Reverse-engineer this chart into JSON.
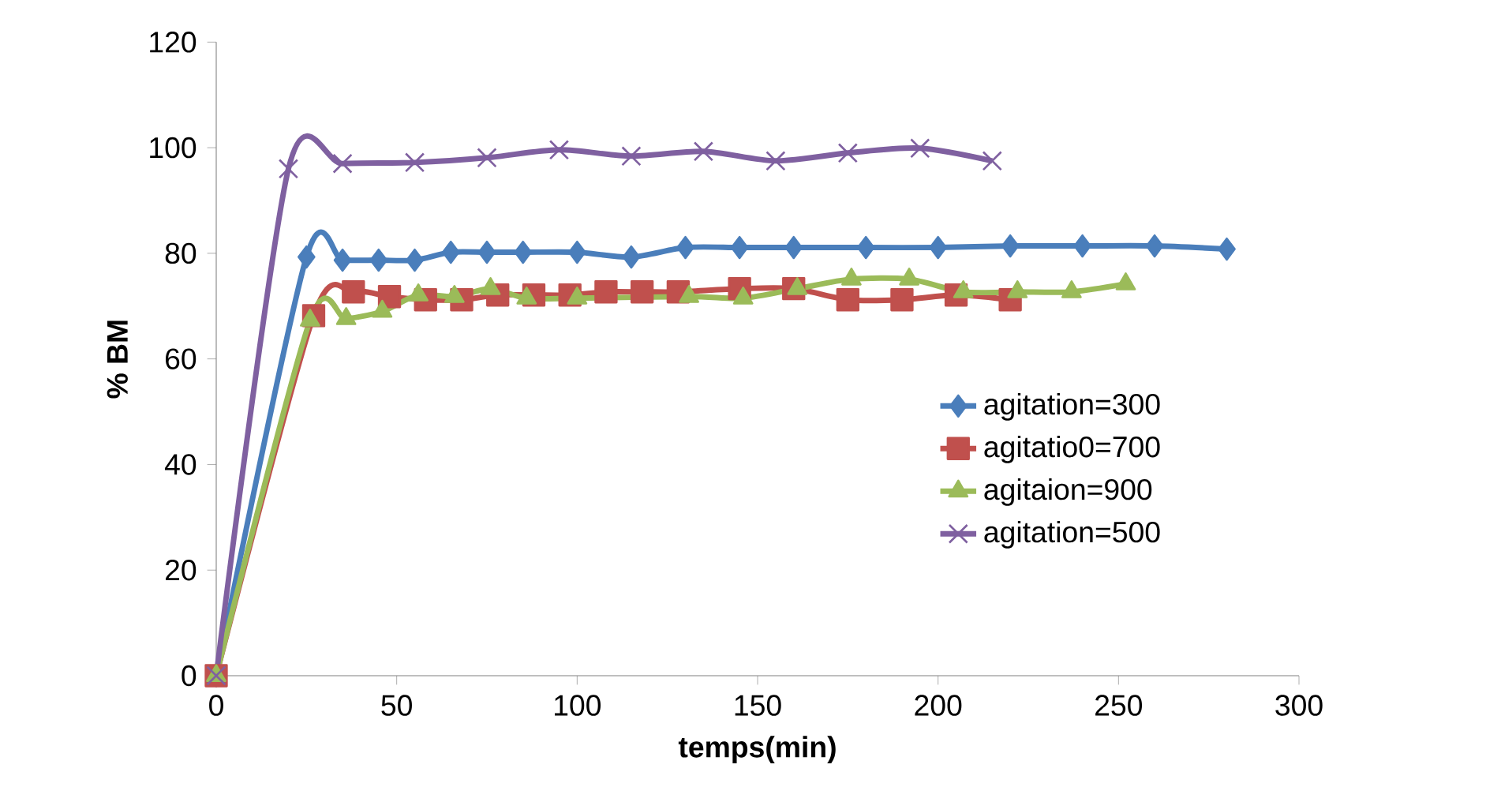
{
  "chart_data": {
    "type": "line",
    "xlabel": "temps(min)",
    "ylabel": "% BM",
    "xlim": [
      0,
      300
    ],
    "ylim": [
      0,
      120
    ],
    "xticks": [
      0,
      50,
      100,
      150,
      200,
      250,
      300
    ],
    "yticks": [
      0,
      20,
      40,
      60,
      80,
      100,
      120
    ],
    "grid": false,
    "legend": "right",
    "line_style": "solid",
    "series": [
      {
        "name": "agitation=300",
        "color": "#4a7ebb",
        "marker": "diamond",
        "x": [
          0,
          25,
          35,
          45,
          55,
          65,
          75,
          85,
          100,
          115,
          130,
          145,
          160,
          180,
          200,
          220,
          240,
          260,
          280
        ],
        "values": [
          0,
          79.3,
          78.7,
          78.7,
          78.7,
          80.2,
          80.2,
          80.2,
          80.2,
          79.3,
          81.1,
          81.1,
          81.1,
          81.1,
          81.1,
          81.4,
          81.4,
          81.4,
          80.8
        ]
      },
      {
        "name": "agitatio0=700",
        "color": "#c0504d",
        "marker": "square",
        "x": [
          0,
          27,
          38,
          48,
          58,
          68,
          78,
          88,
          98,
          108,
          118,
          128,
          145,
          160,
          175,
          190,
          205,
          220
        ],
        "values": [
          0,
          68.2,
          72.7,
          71.8,
          71.2,
          71.2,
          72.1,
          72.1,
          72.1,
          72.7,
          72.7,
          72.7,
          73.3,
          73.3,
          71.2,
          71.2,
          72.1,
          71.2
        ]
      },
      {
        "name": "agitaion=900",
        "color": "#9bbb59",
        "marker": "triangle",
        "x": [
          0,
          26,
          36,
          46,
          56,
          66,
          76,
          86,
          100,
          131,
          146,
          161,
          176,
          192,
          207,
          222,
          237,
          252
        ],
        "values": [
          0,
          67.3,
          67.6,
          69,
          72.1,
          71.8,
          73.3,
          71.5,
          71.5,
          71.8,
          71.5,
          73.3,
          75.1,
          75.1,
          72.7,
          72.7,
          72.7,
          74.2
        ]
      },
      {
        "name": "agitation=500",
        "color": "#7f60a0",
        "marker": "cross",
        "x": [
          0,
          20,
          35,
          55,
          75,
          95,
          115,
          135,
          155,
          175,
          195,
          215
        ],
        "values": [
          0,
          96,
          97,
          97.2,
          98.1,
          99.6,
          98.4,
          99.3,
          97.5,
          99,
          99.9,
          97.5
        ]
      }
    ]
  }
}
